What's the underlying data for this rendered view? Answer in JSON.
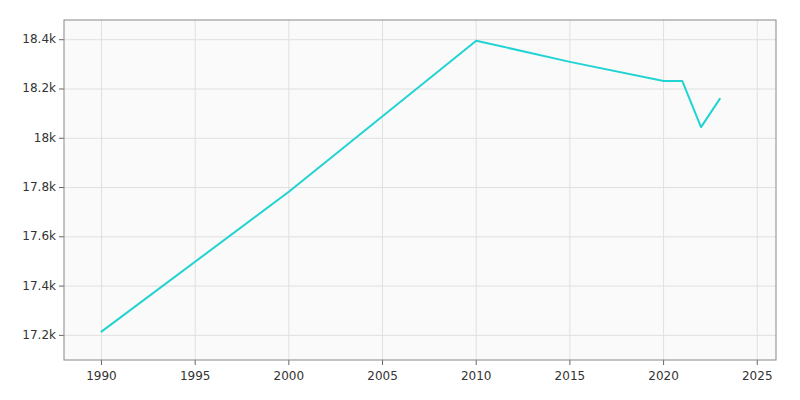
{
  "chart_data": {
    "type": "line",
    "x": [
      1990,
      2000,
      2010,
      2015,
      2020,
      2021,
      2022,
      2023
    ],
    "values": [
      17215,
      17783,
      18396,
      18310,
      18232,
      18232,
      18045,
      18160
    ],
    "color": "#22d3d3",
    "xlim": [
      1988,
      2026
    ],
    "ylim": [
      17100,
      18480
    ],
    "xticks": [
      1990,
      1995,
      2000,
      2005,
      2010,
      2015,
      2020,
      2025
    ],
    "yticks": [
      {
        "value": 17200,
        "label": "17.2k"
      },
      {
        "value": 17400,
        "label": "17.4k"
      },
      {
        "value": 17600,
        "label": "17.6k"
      },
      {
        "value": 17800,
        "label": "17.8k"
      },
      {
        "value": 18000,
        "label": "18k"
      },
      {
        "value": 18200,
        "label": "18.2k"
      },
      {
        "value": 18400,
        "label": "18.4k"
      }
    ],
    "grid": true
  }
}
